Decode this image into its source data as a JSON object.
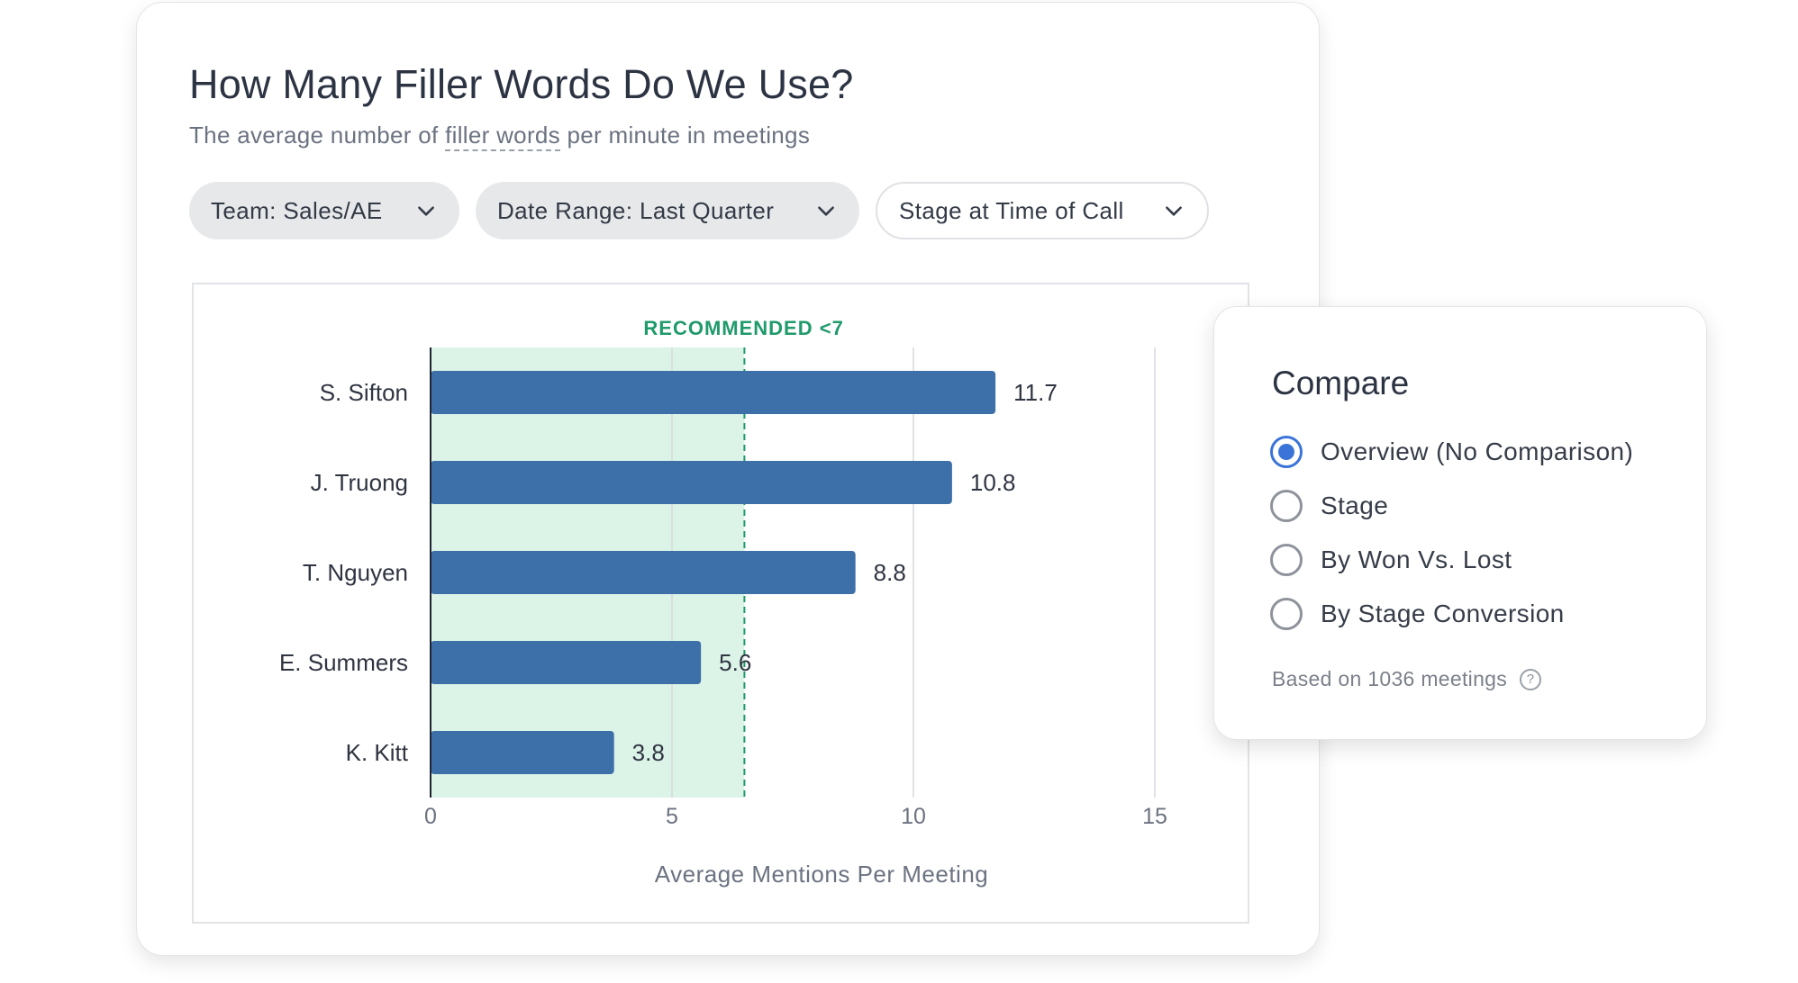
{
  "header": {
    "title": "How Many Filler Words Do We Use?",
    "subtitle_prefix": "The average number of ",
    "subtitle_link": "filler words",
    "subtitle_suffix": " per minute in meetings"
  },
  "filters": [
    {
      "label": "Team: Sales/AE",
      "icon": "chevron-down-icon"
    },
    {
      "label": "Date Range: Last Quarter",
      "icon": "chevron-down-icon"
    },
    {
      "label": "Stage at Time of Call",
      "icon": "chevron-down-icon"
    }
  ],
  "chart_data": {
    "type": "bar",
    "orientation": "horizontal",
    "categories": [
      "S. Sifton",
      "J. Truong",
      "T. Nguyen",
      "E. Summers",
      "K. Kitt"
    ],
    "values": [
      11.7,
      10.8,
      8.8,
      5.6,
      3.8
    ],
    "value_labels": [
      "11.7",
      "10.8",
      "8.8",
      "5.6",
      "3.8"
    ],
    "xlabel": "Average Mentions Per Meeting",
    "xlim": [
      0,
      15
    ],
    "xticks": [
      0,
      5,
      10,
      15
    ],
    "grid": true,
    "bar_color": "#3d6fa8",
    "recommended": {
      "label": "RECOMMENDED <7",
      "threshold": 6.5,
      "band_color": "#dcf3e8",
      "line_color": "#1f9a6a"
    }
  },
  "compare": {
    "title": "Compare",
    "options": [
      {
        "label": "Overview (No Comparison)",
        "selected": true
      },
      {
        "label": "Stage",
        "selected": false
      },
      {
        "label": "By Won Vs. Lost",
        "selected": false
      },
      {
        "label": "By Stage Conversion",
        "selected": false
      }
    ],
    "footnote": "Based on 1036 meetings",
    "help_icon": "question-circle-icon",
    "help_glyph": "?"
  },
  "colors": {
    "accent": "#3b74d8",
    "recommended_text": "#1f9a6a"
  }
}
